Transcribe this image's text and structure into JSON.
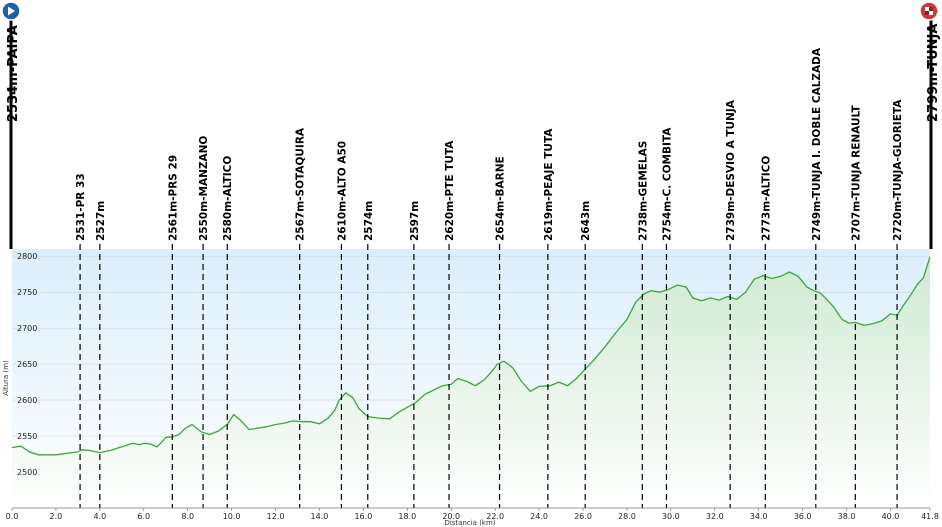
{
  "colors": {
    "line": "#3aa83a",
    "area_top": "#cfe9d2",
    "area_bottom": "#ffffff",
    "sky_top": "#dbeefb",
    "sky_bottom": "#ffffff",
    "grid": "#ffffff",
    "start_icon": "#1f5fa8",
    "finish_icon": "#c43b3b"
  },
  "start": {
    "label": "2534m-PAIPA",
    "icon": "play-icon"
  },
  "finish": {
    "label": "2799m-TUNJA",
    "icon": "checkered-flag-icon"
  },
  "chart_data": {
    "type": "area",
    "xlabel": "Distancia  (km)",
    "ylabel": "Altura (m)",
    "xlim": [
      0,
      41.8
    ],
    "ylim": [
      2450,
      2810
    ],
    "grid": true,
    "x_ticks": [
      "0.0",
      "2.0",
      "4.0",
      "6.0",
      "8.0",
      "10.0",
      "12.0",
      "14.0",
      "16.0",
      "18.0",
      "20.0",
      "22.0",
      "24.0",
      "26.0",
      "28.0",
      "30.0",
      "32.0",
      "34.0",
      "36.0",
      "38.0",
      "40.0",
      "41.8"
    ],
    "y_ticks": [
      "2500",
      "2550",
      "2600",
      "2650",
      "2700",
      "2750",
      "2800"
    ],
    "x": [
      0,
      0.4,
      0.8,
      1.2,
      2.0,
      3.0,
      3.2,
      3.5,
      4.0,
      4.5,
      5.0,
      5.5,
      5.8,
      6.0,
      6.3,
      6.6,
      6.8,
      7.0,
      7.3,
      7.6,
      7.9,
      8.2,
      8.6,
      9.0,
      9.4,
      9.8,
      10.1,
      10.4,
      10.8,
      11.2,
      11.6,
      12.0,
      12.4,
      12.8,
      13.2,
      13.6,
      14.0,
      14.4,
      14.7,
      14.9,
      15.2,
      15.5,
      15.8,
      16.2,
      16.7,
      17.2,
      17.6,
      18.0,
      18.4,
      18.8,
      19.2,
      19.6,
      20.0,
      20.3,
      20.7,
      21.1,
      21.5,
      21.8,
      22.1,
      22.4,
      22.8,
      23.2,
      23.6,
      24.0,
      24.5,
      24.9,
      25.3,
      25.7,
      26.1,
      26.5,
      27.0,
      27.5,
      28.0,
      28.4,
      28.8,
      29.1,
      29.5,
      29.9,
      30.3,
      30.7,
      31.0,
      31.4,
      31.8,
      32.2,
      32.6,
      33.0,
      33.4,
      33.8,
      34.2,
      34.6,
      35.0,
      35.4,
      35.8,
      36.2,
      36.5,
      36.8,
      37.1,
      37.4,
      37.8,
      38.1,
      38.4,
      38.8,
      39.2,
      39.6,
      40.0,
      40.3,
      40.6,
      40.9,
      41.2,
      41.5,
      41.8
    ],
    "y": [
      2534,
      2536,
      2528,
      2524,
      2524,
      2528,
      2531,
      2530,
      2527,
      2530,
      2535,
      2540,
      2538,
      2540,
      2539,
      2535,
      2541,
      2548,
      2549,
      2552,
      2561,
      2566,
      2556,
      2552,
      2557,
      2566,
      2580,
      2572,
      2559,
      2561,
      2563,
      2566,
      2568,
      2571,
      2570,
      2570,
      2567,
      2575,
      2586,
      2600,
      2610,
      2604,
      2588,
      2577,
      2575,
      2574,
      2583,
      2590,
      2597,
      2608,
      2614,
      2620,
      2622,
      2630,
      2626,
      2620,
      2628,
      2638,
      2650,
      2654,
      2645,
      2626,
      2612,
      2619,
      2620,
      2625,
      2620,
      2630,
      2643,
      2656,
      2674,
      2694,
      2712,
      2736,
      2748,
      2752,
      2750,
      2754,
      2760,
      2757,
      2742,
      2738,
      2742,
      2739,
      2744,
      2740,
      2750,
      2768,
      2773,
      2769,
      2772,
      2778,
      2772,
      2757,
      2752,
      2749,
      2740,
      2730,
      2712,
      2707,
      2708,
      2704,
      2706,
      2710,
      2720,
      2718,
      2732,
      2745,
      2760,
      2770,
      2799
    ]
  },
  "waypoints": [
    {
      "km": 3.1,
      "label": "2531-PR  33"
    },
    {
      "km": 4.0,
      "label": "2527m"
    },
    {
      "km": 7.3,
      "label": "2561m-PRS  29"
    },
    {
      "km": 8.7,
      "label": "2550m-MANZANO"
    },
    {
      "km": 9.8,
      "label": "2580m-ALTICO"
    },
    {
      "km": 13.1,
      "label": "2567m-SOTAQUIRA"
    },
    {
      "km": 15.0,
      "label": "2610m-ALTO  A50"
    },
    {
      "km": 16.2,
      "label": "2574m"
    },
    {
      "km": 18.3,
      "label": "2597m"
    },
    {
      "km": 19.9,
      "label": "2620m-PTE  TUTA"
    },
    {
      "km": 22.2,
      "label": "2654m-BARNE"
    },
    {
      "km": 24.4,
      "label": "2619m-PEAJE  TUTA"
    },
    {
      "km": 26.1,
      "label": "2643m"
    },
    {
      "km": 28.7,
      "label": "2738m-GEMELAS"
    },
    {
      "km": 29.8,
      "label": "2754m-C.  COMBITA"
    },
    {
      "km": 32.7,
      "label": "2739m-DESVIO  A TUNJA"
    },
    {
      "km": 34.3,
      "label": "2773m-ALTICO"
    },
    {
      "km": 36.6,
      "label": "2749m-TUNJA  I. DOBLE  CALZADA"
    },
    {
      "km": 38.4,
      "label": "2707m-TUNJA  RENAULT"
    },
    {
      "km": 40.3,
      "label": "2720m-TUNJA-GLORIETA"
    }
  ]
}
